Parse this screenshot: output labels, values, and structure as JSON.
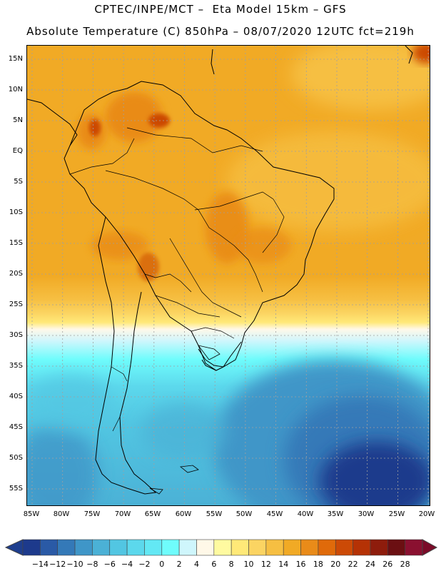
{
  "header": {
    "line1": "CPTEC/INPE/MCT –  Eta Model 15km – GFS",
    "line2": "Absolute Temperature (C) 850hPa – 08/07/2020 12UTC fct=219h"
  },
  "map": {
    "lat_labels": [
      "15N",
      "10N",
      "5N",
      "EQ",
      "5S",
      "10S",
      "15S",
      "20S",
      "25S",
      "30S",
      "35S",
      "40S",
      "45S",
      "50S",
      "55S"
    ],
    "lon_labels": [
      "85W",
      "80W",
      "75W",
      "70W",
      "65W",
      "60W",
      "55W",
      "50W",
      "45W",
      "40W",
      "35W",
      "30W",
      "25W",
      "20W"
    ]
  },
  "legend": {
    "unit": "C",
    "labels": [
      "-14",
      "-12",
      "-10",
      "-8",
      "-6",
      "-4",
      "-2",
      "0",
      "2",
      "4",
      "6",
      "8",
      "10",
      "12",
      "14",
      "16",
      "18",
      "20",
      "22",
      "24",
      "26",
      "28"
    ],
    "colors": [
      "#1d3a8c",
      "#2a5aa6",
      "#3479b8",
      "#3f96c8",
      "#4bb1d6",
      "#52c6e2",
      "#5cd8ec",
      "#63e8f4",
      "#6ffcfc",
      "#cff6fc",
      "#fff8e8",
      "#fffaa0",
      "#ffe978",
      "#fbd462",
      "#f6bf42",
      "#f1aa25",
      "#e98b19",
      "#e06a0a",
      "#cc4a06",
      "#b53205",
      "#8e1c0c",
      "#6b0f12",
      "#8a1030"
    ],
    "under_color": "#1e3e8e",
    "over_color": "#7a0a28"
  }
}
